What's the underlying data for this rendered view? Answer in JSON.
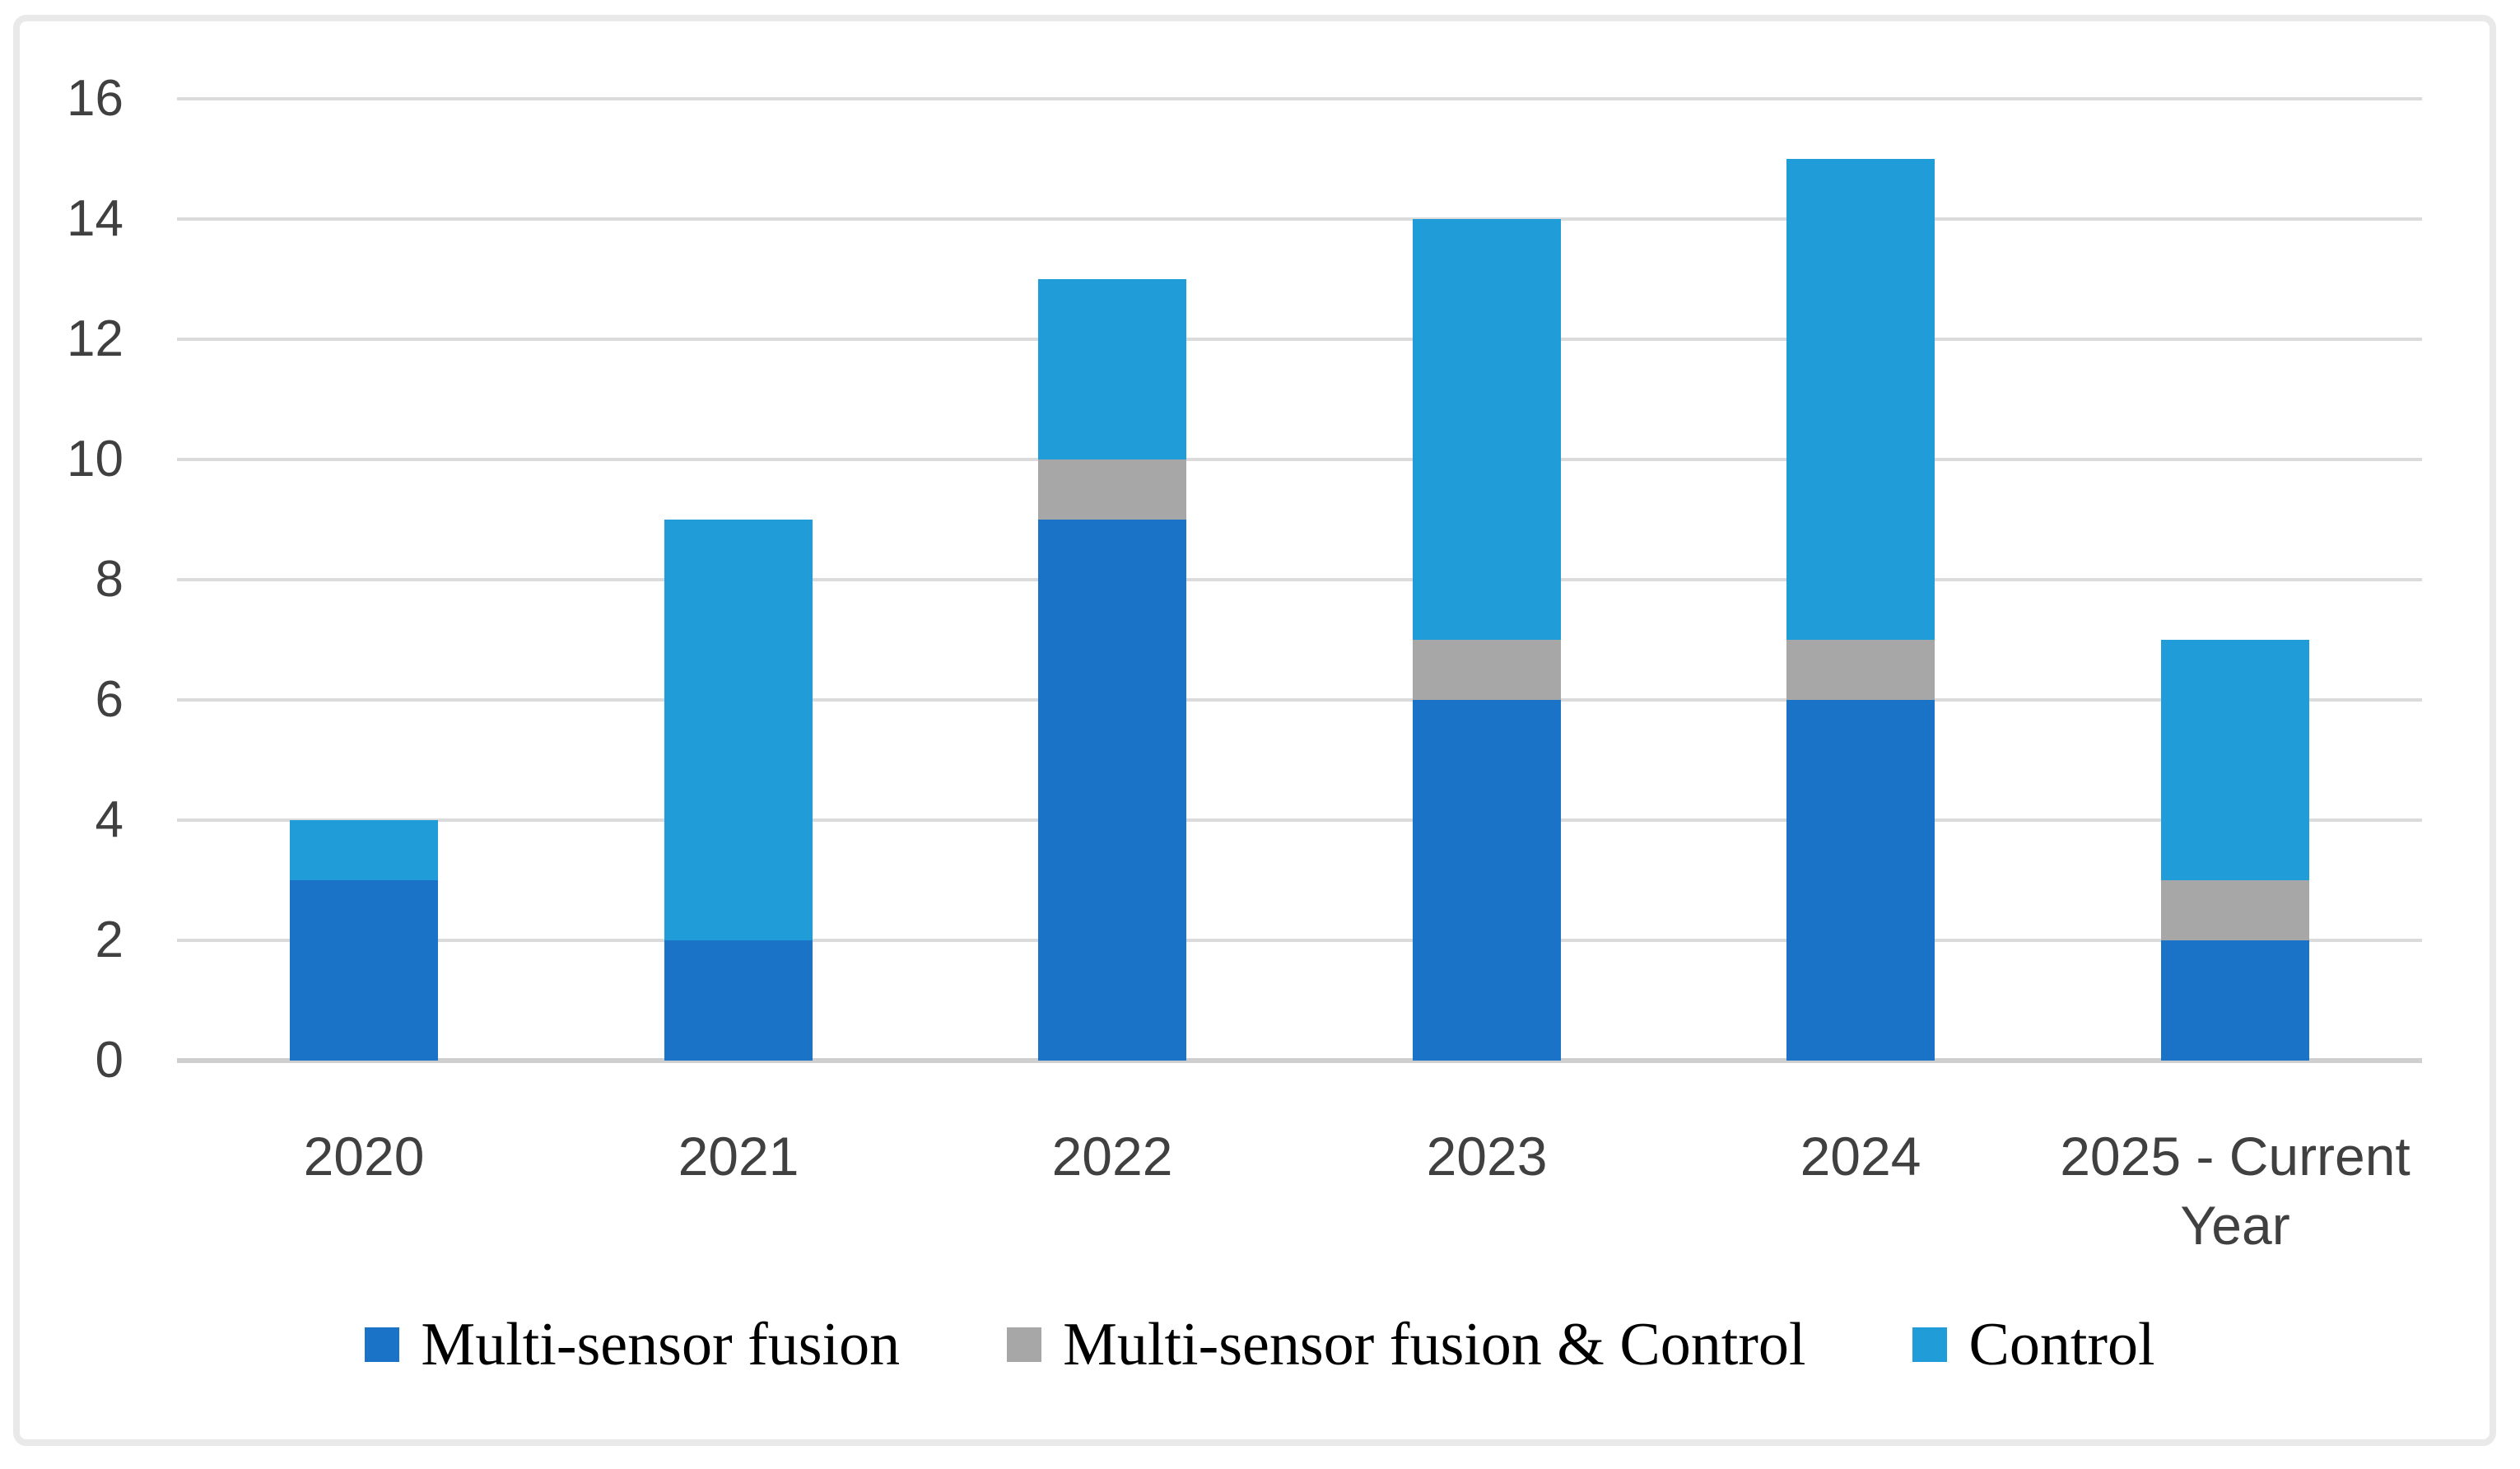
{
  "chart_data": {
    "type": "bar",
    "stacked": true,
    "orientation": "vertical",
    "title": "",
    "xlabel": "",
    "ylabel": "",
    "categories": [
      "2020",
      "2021",
      "2022",
      "2023",
      "2024",
      "2025 - Current Year"
    ],
    "series": [
      {
        "name": "Multi-sensor fusion",
        "color": "#1b73c7",
        "values": [
          3,
          2,
          9,
          6,
          6,
          2
        ]
      },
      {
        "name": "Multi-sensor fusion & Control",
        "color": "#a7a7a7",
        "values": [
          0,
          0,
          1,
          1,
          1,
          1
        ]
      },
      {
        "name": "Control",
        "color": "#209cd9",
        "values": [
          1,
          7,
          3,
          7,
          8,
          4
        ]
      }
    ],
    "totals": [
      4,
      9,
      13,
      14,
      15,
      7
    ],
    "ylim": [
      0,
      16
    ],
    "yticks": [
      0,
      2,
      4,
      6,
      8,
      10,
      12,
      14,
      16
    ],
    "grid": "horizontal",
    "legend_position": "bottom"
  },
  "colors": {
    "grid": "#dbdbdb",
    "axis_line": "#cfcfcf",
    "tick_label": "#404040",
    "category_label": "#404040",
    "legend_text": "#000000",
    "frame_border": "#e9e9e9",
    "background": "#ffffff"
  }
}
